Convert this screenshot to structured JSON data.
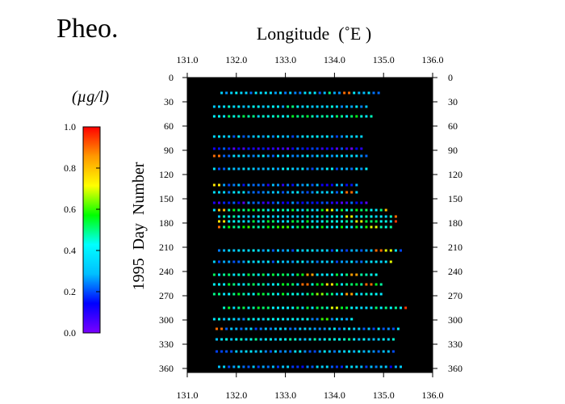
{
  "title": "Pheo.",
  "unit_label": "(µg/l)",
  "colorbar": {
    "ticks": [
      "1.0",
      "0.8",
      "0.6",
      "0.4",
      "0.2",
      "0.0"
    ],
    "range": [
      0,
      1
    ],
    "colors": [
      "#7a00ff",
      "#0000ff",
      "#00bfff",
      "#00ffff",
      "#00ff00",
      "#ffff00",
      "#ff9900",
      "#ff0000"
    ]
  },
  "chart_data": {
    "type": "scatter",
    "xlabel": "Longitude  (˚E )",
    "ylabel": "1995  Day  Number",
    "xlim": [
      131.0,
      136.0
    ],
    "ylim": [
      0,
      365
    ],
    "y_inverted": true,
    "xticks": [
      "131.0",
      "132.0",
      "133.0",
      "134.0",
      "135.0",
      "136.0"
    ],
    "yticks": [
      "0",
      "30",
      "60",
      "90",
      "120",
      "150",
      "180",
      "210",
      "240",
      "270",
      "300",
      "330",
      "360"
    ],
    "background": "#000000",
    "color_variable": "Pheo. (µg/l)",
    "transects": [
      {
        "day": 19,
        "x0": 131.7,
        "x1": 134.9,
        "value": 0.3,
        "hi": [
          [
            134.25,
            0.9
          ],
          [
            133.9,
            0.5
          ]
        ]
      },
      {
        "day": 36,
        "x0": 131.55,
        "x1": 134.7,
        "value": 0.35,
        "hi": [
          [
            133.1,
            0.5
          ]
        ]
      },
      {
        "day": 48,
        "x0": 131.55,
        "x1": 134.75,
        "value": 0.45,
        "hi": [
          [
            133.3,
            0.5
          ]
        ]
      },
      {
        "day": 73,
        "x0": 131.55,
        "x1": 134.6,
        "value": 0.3,
        "hi": []
      },
      {
        "day": 88,
        "x0": 131.55,
        "x1": 134.6,
        "value": 0.12,
        "hi": []
      },
      {
        "day": 97,
        "x0": 131.55,
        "x1": 134.65,
        "value": 0.3,
        "hi": [
          [
            131.6,
            0.9
          ]
        ]
      },
      {
        "day": 113,
        "x0": 131.55,
        "x1": 134.65,
        "value": 0.3,
        "hi": []
      },
      {
        "day": 133,
        "x0": 131.55,
        "x1": 134.5,
        "value": 0.2,
        "hi": [
          [
            131.6,
            0.75
          ]
        ]
      },
      {
        "day": 142,
        "x0": 131.55,
        "x1": 134.5,
        "value": 0.3,
        "hi": [
          [
            134.3,
            0.9
          ]
        ]
      },
      {
        "day": 155,
        "x0": 131.55,
        "x1": 134.65,
        "value": 0.15,
        "hi": []
      },
      {
        "day": 164,
        "x0": 131.55,
        "x1": 135.1,
        "value": 0.45,
        "hi": [
          [
            131.7,
            0.8
          ],
          [
            133.9,
            0.7
          ],
          [
            135.05,
            0.8
          ]
        ]
      },
      {
        "day": 172,
        "x0": 131.65,
        "x1": 135.3,
        "value": 0.4,
        "hi": [
          [
            135.3,
            0.9
          ],
          [
            134.3,
            0.7
          ]
        ]
      },
      {
        "day": 178,
        "x0": 131.65,
        "x1": 135.3,
        "value": 0.45,
        "hi": [
          [
            131.7,
            0.75
          ],
          [
            135.3,
            0.95
          ],
          [
            134.5,
            0.7
          ]
        ]
      },
      {
        "day": 185,
        "x0": 131.65,
        "x1": 135.2,
        "value": 0.5,
        "hi": [
          [
            131.65,
            0.9
          ],
          [
            134.8,
            0.7
          ]
        ]
      },
      {
        "day": 214,
        "x0": 131.65,
        "x1": 135.35,
        "value": 0.3,
        "hi": [
          [
            134.9,
            0.9
          ],
          [
            135.1,
            0.7
          ]
        ]
      },
      {
        "day": 228,
        "x0": 131.55,
        "x1": 135.2,
        "value": 0.3,
        "hi": [
          [
            135.15,
            0.7
          ]
        ]
      },
      {
        "day": 244,
        "x0": 131.55,
        "x1": 134.9,
        "value": 0.45,
        "hi": [
          [
            133.5,
            0.85
          ],
          [
            134.4,
            0.85
          ]
        ]
      },
      {
        "day": 256,
        "x0": 131.55,
        "x1": 135.0,
        "value": 0.45,
        "hi": [
          [
            133.4,
            0.9
          ],
          [
            134.7,
            0.9
          ],
          [
            133.9,
            0.75
          ]
        ]
      },
      {
        "day": 268,
        "x0": 131.55,
        "x1": 135.0,
        "value": 0.45,
        "hi": [
          [
            134.3,
            0.85
          ],
          [
            133.7,
            0.65
          ]
        ]
      },
      {
        "day": 285,
        "x0": 131.75,
        "x1": 135.45,
        "value": 0.45,
        "hi": [
          [
            135.45,
            0.95
          ],
          [
            134.0,
            0.7
          ]
        ]
      },
      {
        "day": 299,
        "x0": 131.55,
        "x1": 134.35,
        "value": 0.35,
        "hi": [
          [
            133.8,
            0.6
          ]
        ]
      },
      {
        "day": 311,
        "x0": 131.6,
        "x1": 135.3,
        "value": 0.3,
        "hi": [
          [
            131.65,
            0.9
          ]
        ]
      },
      {
        "day": 324,
        "x0": 131.6,
        "x1": 135.2,
        "value": 0.4,
        "hi": []
      },
      {
        "day": 339,
        "x0": 131.6,
        "x1": 135.25,
        "value": 0.3,
        "hi": []
      },
      {
        "day": 358,
        "x0": 131.65,
        "x1": 135.35,
        "value": 0.25,
        "hi": []
      }
    ]
  }
}
